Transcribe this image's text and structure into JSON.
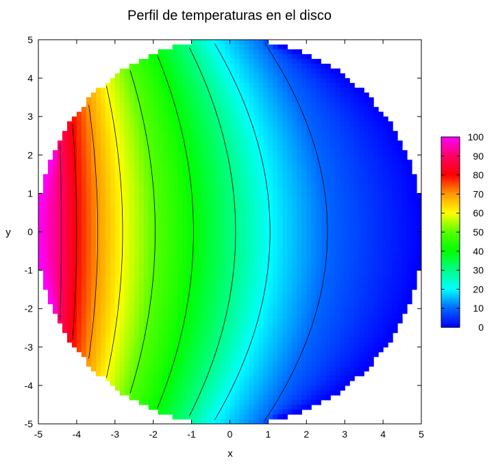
{
  "chart_data": {
    "type": "heatmap",
    "title": "Perfil de temperaturas en el disco",
    "xlabel": "x",
    "ylabel": "y",
    "xlim": [
      -5,
      5
    ],
    "ylim": [
      -5,
      5
    ],
    "x_ticks": [
      "-5",
      "-4",
      "-3",
      "-2",
      "-1",
      "0",
      "1",
      "2",
      "3",
      "4",
      "5"
    ],
    "y_ticks": [
      "-5",
      "-4",
      "-3",
      "-2",
      "-1",
      "0",
      "1",
      "2",
      "3",
      "4",
      "5"
    ],
    "colorbar": {
      "range": [
        0,
        100
      ],
      "ticks": [
        "0",
        "10",
        "20",
        "30",
        "40",
        "50",
        "60",
        "70",
        "80",
        "90",
        "100"
      ],
      "palette": [
        {
          "value": 0,
          "color": "#0000ff"
        },
        {
          "value": 10,
          "color": "#0066ff"
        },
        {
          "value": 20,
          "color": "#00ffff"
        },
        {
          "value": 30,
          "color": "#00ff88"
        },
        {
          "value": 40,
          "color": "#00ff00"
        },
        {
          "value": 50,
          "color": "#55ff00"
        },
        {
          "value": 60,
          "color": "#ffff00"
        },
        {
          "value": 70,
          "color": "#ff9900"
        },
        {
          "value": 80,
          "color": "#ff0000"
        },
        {
          "value": 90,
          "color": "#ff0066"
        },
        {
          "value": 100,
          "color": "#ff00ff"
        }
      ]
    },
    "domain": {
      "shape": "disk",
      "center": [
        0,
        0
      ],
      "radius": 5
    },
    "field": {
      "description": "Temperature decreasing from 100 at left edge (x=-5) to 0 at right edge (x=5)"
    },
    "contour_levels": [
      10,
      20,
      30,
      40,
      50,
      60,
      70,
      80,
      90
    ],
    "contour_axis_crossings": [
      {
        "level": 90,
        "x": -4.4
      },
      {
        "level": 80,
        "x": -4.0
      },
      {
        "level": 70,
        "x": -3.45
      },
      {
        "level": 60,
        "x": -2.8
      },
      {
        "level": 50,
        "x": -1.95
      },
      {
        "level": 40,
        "x": -0.95
      },
      {
        "level": 30,
        "x": 0.15
      },
      {
        "level": 20,
        "x": 1.05
      },
      {
        "level": 10,
        "x": 2.55
      }
    ]
  }
}
